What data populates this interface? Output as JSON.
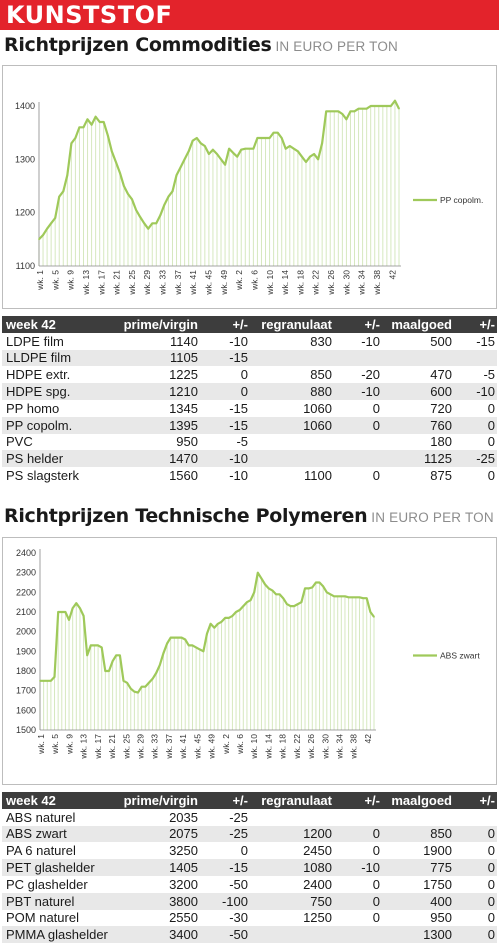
{
  "banner": "KUNSTSTOF",
  "section1": {
    "title": "Richtprijzen Commodities",
    "unit": "IN EURO PER TON",
    "table": {
      "headers": [
        "week 42",
        "prime/virgin",
        "+/-",
        "regranulaat",
        "+/-",
        "maalgoed",
        "+/-"
      ],
      "rows": [
        [
          "LDPE film",
          "1140",
          "-10",
          "830",
          "-10",
          "500",
          "-15"
        ],
        [
          "LLDPE film",
          "1105",
          "-15",
          "",
          "",
          "",
          ""
        ],
        [
          "HDPE extr.",
          "1225",
          "0",
          "850",
          "-20",
          "470",
          "-5"
        ],
        [
          "HDPE spg.",
          "1210",
          "0",
          "880",
          "-10",
          "600",
          "-10"
        ],
        [
          "PP homo",
          "1345",
          "-15",
          "1060",
          "0",
          "720",
          "0"
        ],
        [
          "PP copolm.",
          "1395",
          "-15",
          "1060",
          "0",
          "760",
          "0"
        ],
        [
          "PVC",
          "950",
          "-5",
          "",
          "",
          "180",
          "0"
        ],
        [
          "PS helder",
          "1470",
          "-10",
          "",
          "",
          "1125",
          "-25"
        ],
        [
          "PS slagsterk",
          "1560",
          "-10",
          "1100",
          "0",
          "875",
          "0"
        ]
      ]
    }
  },
  "section2": {
    "title": "Richtprijzen Technische Polymeren",
    "unit": "IN EURO PER TON",
    "table": {
      "headers": [
        "week 42",
        "prime/virgin",
        "+/-",
        "regranulaat",
        "+/-",
        "maalgoed",
        "+/-"
      ],
      "rows": [
        [
          "ABS naturel",
          "2035",
          "-25",
          "",
          "",
          "",
          ""
        ],
        [
          "ABS zwart",
          "2075",
          "-25",
          "1200",
          "0",
          "850",
          "0"
        ],
        [
          "PA 6 naturel",
          "3250",
          "0",
          "2450",
          "0",
          "1900",
          "0"
        ],
        [
          "PET glashelder",
          "1405",
          "-15",
          "1080",
          "-10",
          "775",
          "0"
        ],
        [
          "PC glashelder",
          "3200",
          "-50",
          "2400",
          "0",
          "1750",
          "0"
        ],
        [
          "PBT naturel",
          "3800",
          "-100",
          "750",
          "0",
          "400",
          "0"
        ],
        [
          "POM naturel",
          "2550",
          "-30",
          "1250",
          "0",
          "950",
          "0"
        ],
        [
          "PMMA glashelder",
          "3400",
          "-50",
          "",
          "",
          "1300",
          "0"
        ]
      ]
    }
  },
  "chart_data": [
    {
      "type": "area",
      "ylim": [
        1100,
        1400
      ],
      "yticks": [
        1100,
        1200,
        1300,
        1400
      ],
      "x_tick_labels": [
        "wk. 1",
        "wk. 5",
        "wk. 9",
        "wk. 13",
        "wk. 17",
        "wk. 21",
        "wk. 25",
        "wk. 29",
        "wk. 33",
        "wk. 37",
        "wk. 41",
        "wk. 45",
        "wk. 49",
        "wk. 2",
        "wk. 6",
        "wk. 10",
        "wk. 14",
        "wk. 18",
        "wk. 22",
        "wk. 26",
        "wk. 30",
        "wk. 34",
        "wk. 38",
        "42"
      ],
      "legend_position": "right",
      "line_color": "#9fc95a",
      "fill_color": "#d6e8bf",
      "series": [
        {
          "name": "PP copolm.",
          "values": [
            1150,
            1158,
            1170,
            1180,
            1190,
            1230,
            1240,
            1270,
            1330,
            1340,
            1360,
            1360,
            1375,
            1365,
            1380,
            1370,
            1370,
            1345,
            1315,
            1295,
            1275,
            1250,
            1235,
            1225,
            1205,
            1192,
            1180,
            1170,
            1180,
            1180,
            1195,
            1215,
            1230,
            1240,
            1270,
            1285,
            1300,
            1315,
            1335,
            1340,
            1330,
            1325,
            1310,
            1318,
            1310,
            1300,
            1290,
            1320,
            1312,
            1305,
            1318,
            1320,
            1320,
            1320,
            1340,
            1340,
            1340,
            1340,
            1350,
            1350,
            1340,
            1320,
            1325,
            1320,
            1315,
            1305,
            1295,
            1305,
            1310,
            1300,
            1330,
            1390,
            1390,
            1390,
            1390,
            1385,
            1375,
            1390,
            1390,
            1395,
            1395,
            1395,
            1400,
            1400,
            1400,
            1400,
            1400,
            1400,
            1410,
            1395
          ]
        }
      ]
    },
    {
      "type": "area",
      "ylim": [
        1500,
        2400
      ],
      "yticks": [
        1500,
        1600,
        1700,
        1800,
        1900,
        2000,
        2100,
        2200,
        2300,
        2400
      ],
      "x_tick_labels": [
        "wk. 1",
        "wk. 5",
        "wk. 9",
        "wk. 13",
        "wk. 17",
        "wk. 21",
        "wk. 25",
        "wk. 29",
        "wk. 33",
        "wk. 37",
        "wk. 41",
        "wk. 45",
        "wk. 49",
        "wk. 2",
        "wk. 6",
        "wk. 10",
        "wk. 14",
        "wk. 18",
        "wk. 22",
        "wk. 26",
        "wk. 30",
        "wk. 34",
        "wk. 38",
        "42"
      ],
      "legend_position": "right",
      "line_color": "#9fc95a",
      "fill_color": "#d6e8bf",
      "series": [
        {
          "name": "ABS zwart",
          "values": [
            1750,
            1750,
            1750,
            1750,
            1770,
            2100,
            2100,
            2100,
            2060,
            2120,
            2145,
            2120,
            2080,
            1880,
            1930,
            1930,
            1930,
            1920,
            1800,
            1800,
            1850,
            1880,
            1880,
            1750,
            1740,
            1710,
            1695,
            1690,
            1720,
            1720,
            1740,
            1760,
            1790,
            1830,
            1890,
            1940,
            1970,
            1970,
            1970,
            1970,
            1960,
            1930,
            1930,
            1920,
            1910,
            1900,
            1990,
            2040,
            2020,
            2040,
            2050,
            2070,
            2070,
            2080,
            2100,
            2110,
            2130,
            2150,
            2160,
            2200,
            2300,
            2270,
            2240,
            2220,
            2210,
            2190,
            2190,
            2170,
            2140,
            2130,
            2130,
            2140,
            2150,
            2220,
            2220,
            2225,
            2250,
            2250,
            2230,
            2200,
            2190,
            2180,
            2180,
            2180,
            2180,
            2175,
            2175,
            2175,
            2175,
            2170,
            2170,
            2100,
            2075
          ]
        }
      ]
    }
  ]
}
